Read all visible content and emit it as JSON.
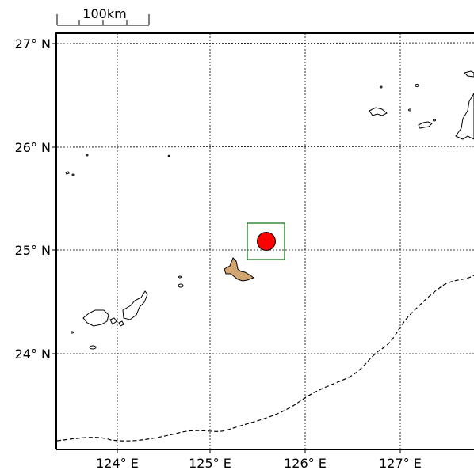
{
  "scale_bar": {
    "label": "100km"
  },
  "latitude_labels": [
    "27° N",
    "26° N",
    "25° N",
    "24° N"
  ],
  "longitude_labels": [
    "124° E",
    "125° E",
    "126° E",
    "127° E"
  ],
  "colors": {
    "frame": "#000000",
    "gridlines": "#000000",
    "coastline": "#000000",
    "trench_line": "#000000",
    "epicenter_fill": "#ff0000",
    "focus_box": "#1a7a1a",
    "highlighted_land": "#d2a670"
  },
  "map": {
    "lat_range": [
      23.05,
      27.1
    ],
    "lon_range": [
      123.4,
      127.8
    ],
    "epicenter": {
      "lat": 25.08,
      "lon": 125.63
    },
    "focus_box": {
      "lat": [
        24.92,
        25.27
      ],
      "lon": [
        125.4,
        125.8
      ]
    }
  }
}
